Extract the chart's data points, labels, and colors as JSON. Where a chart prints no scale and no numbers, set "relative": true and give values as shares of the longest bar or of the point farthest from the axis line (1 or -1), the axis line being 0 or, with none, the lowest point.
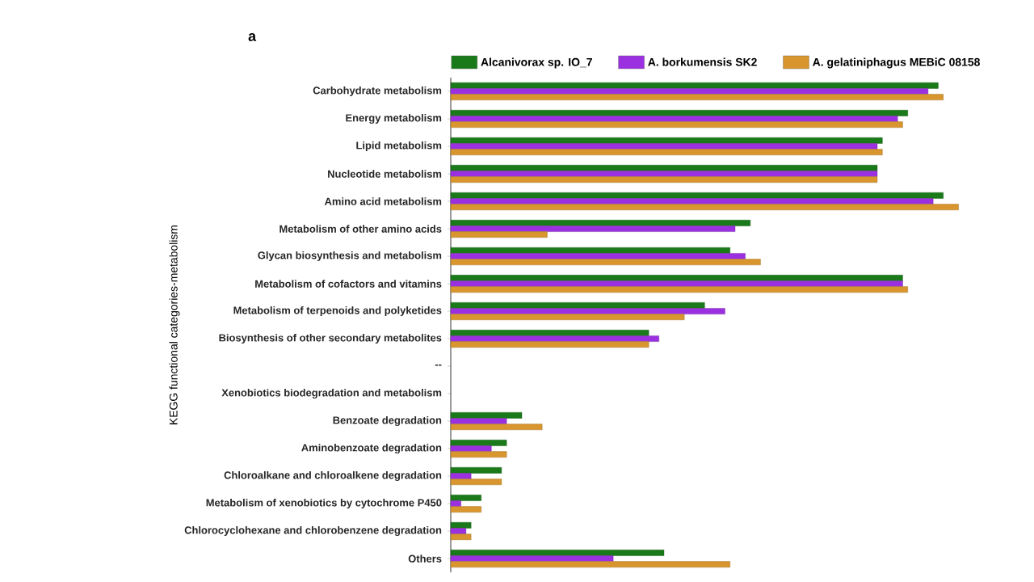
{
  "chart_data": {
    "type": "bar",
    "orientation": "horizontal",
    "relative": true,
    "title": "a",
    "ylabel": "KEGG functional categories-metabolism",
    "legend": "top",
    "categories": [
      "Carbohydrate metabolism",
      "Energy metabolism",
      "Lipid metabolism",
      "Nucleotide metabolism",
      "Amino acid metabolism",
      "Metabolism of other amino acids",
      "Glycan biosynthesis and metabolism",
      "Metabolism of cofactors and vitamins",
      "Metabolism of terpenoids and polyketides",
      "Biosynthesis of other secondary metabolites",
      "--",
      "Xenobiotics biodegradation and metabolism",
      "Benzoate degradation",
      "Aminobenzoate degradation",
      "Chloroalkane and chloroalkene degradation",
      "Metabolism of xenobiotics by cytochrome P450",
      "Chlorocyclohexane and chlorobenzene degradation",
      "Others"
    ],
    "series": [
      {
        "name": "Alcanivorax sp. IO_7",
        "color": "#1a7a1a",
        "values": [
          0.96,
          0.9,
          0.85,
          0.84,
          0.97,
          0.59,
          0.55,
          0.89,
          0.5,
          0.39,
          null,
          null,
          0.14,
          0.11,
          0.1,
          0.06,
          0.04,
          0.42
        ]
      },
      {
        "name": "A. borkumensis SK2",
        "color": "#9b30e0",
        "values": [
          0.94,
          0.88,
          0.84,
          0.84,
          0.95,
          0.56,
          0.58,
          0.89,
          0.54,
          0.41,
          null,
          null,
          0.11,
          0.08,
          0.04,
          0.02,
          0.03,
          0.32
        ]
      },
      {
        "name": "A. gelatiniphagus MEBiC 08158",
        "color": "#d9962e",
        "values": [
          0.97,
          0.89,
          0.85,
          0.84,
          1,
          0.19,
          0.61,
          0.9,
          0.46,
          0.39,
          null,
          null,
          0.18,
          0.11,
          0.1,
          0.06,
          0.04,
          0.55
        ]
      }
    ]
  }
}
